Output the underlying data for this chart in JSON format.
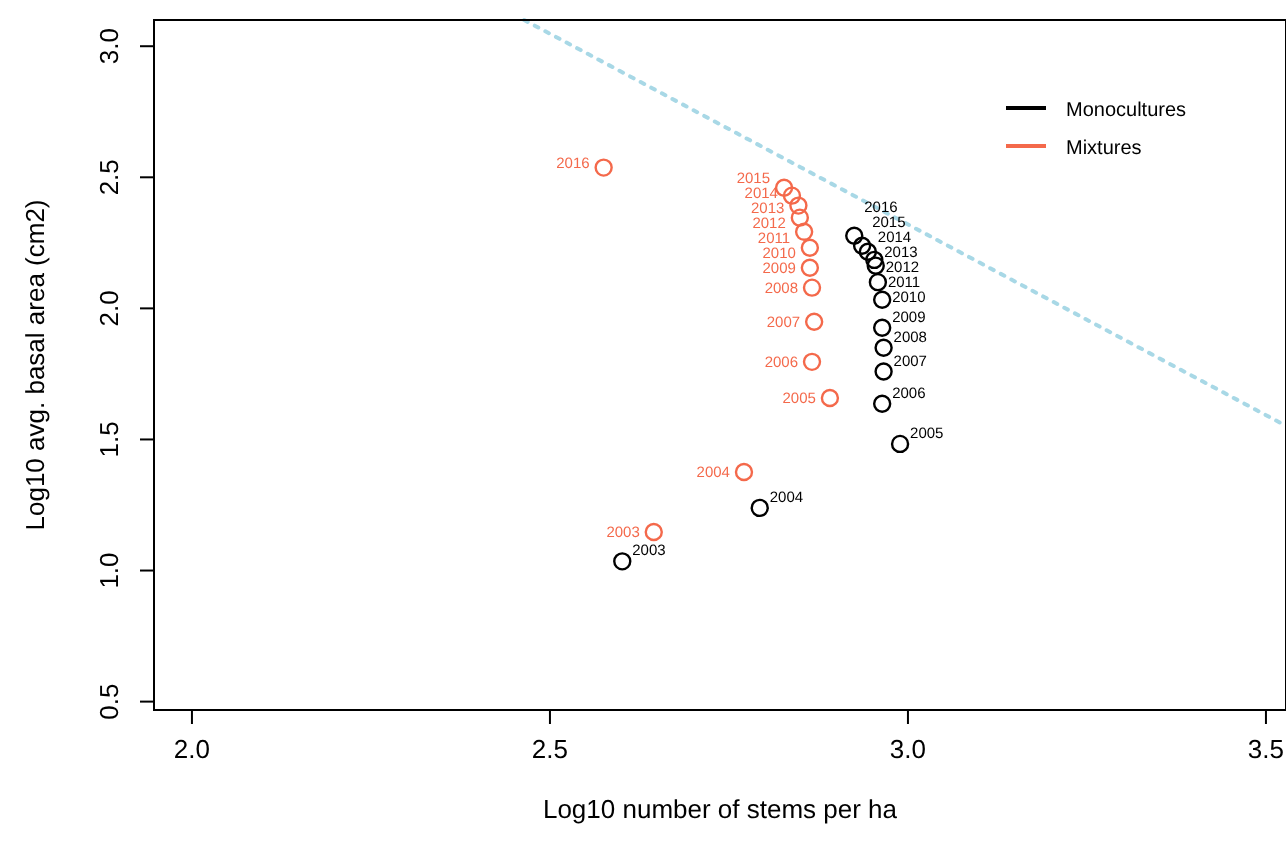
{
  "chart_data": {
    "type": "scatter",
    "xlabel": "Log10 number of stems per ha",
    "ylabel": "Log10 avg. basal area (cm2)",
    "xlim": [
      1.947,
      3.528
    ],
    "ylim": [
      0.468,
      3.1
    ],
    "xticks": [
      {
        "value": 2,
        "label": "2.0"
      },
      {
        "value": 2.5,
        "label": "2.5"
      },
      {
        "value": 3,
        "label": "3.0"
      },
      {
        "value": 3.5,
        "label": "3.5"
      }
    ],
    "yticks": [
      {
        "value": 0.5,
        "label": "0.5"
      },
      {
        "value": 1,
        "label": "1.0"
      },
      {
        "value": 1.5,
        "label": "1.5"
      },
      {
        "value": 2,
        "label": "2.0"
      },
      {
        "value": 2.5,
        "label": "2.5"
      },
      {
        "value": 3,
        "label": "3.0"
      }
    ],
    "marker": "circle",
    "legend": "top right",
    "grid": false,
    "series": [
      {
        "name": "Monocultures",
        "color": "#000000",
        "x": [
          2.601,
          2.793,
          2.989,
          2.964,
          2.966,
          2.966,
          2.964,
          2.964,
          2.958,
          2.955,
          2.953,
          2.944,
          2.936,
          2.925
        ],
        "values": [
          1.035,
          1.239,
          1.483,
          1.636,
          1.759,
          1.85,
          1.926,
          2.033,
          2.1,
          2.163,
          2.185,
          2.216,
          2.239,
          2.277
        ]
      },
      {
        "name": "Mixtures",
        "color": "#f4694b",
        "x": [
          2.645,
          2.771,
          2.891,
          2.866,
          2.869,
          2.866,
          2.863,
          2.863,
          2.855,
          2.849,
          2.847,
          2.838,
          2.827,
          2.575
        ],
        "values": [
          1.147,
          1.376,
          1.658,
          1.796,
          1.949,
          2.079,
          2.155,
          2.231,
          2.292,
          2.346,
          2.392,
          2.43,
          2.46,
          2.537
        ]
      },
      {
        "type": "line",
        "color": "#a8d8e6",
        "line_style": "dotted",
        "marker": "none",
        "x": [
          2.464,
          3.528
        ],
        "values": [
          3.1,
          1.552
        ]
      }
    ],
    "annotations": [
      {
        "text": "2003",
        "x": 2.601,
        "y": 1.035
      },
      {
        "text": "2004",
        "x": 2.793,
        "y": 1.239
      },
      {
        "text": "2005",
        "x": 2.989,
        "y": 1.483
      },
      {
        "text": "2006",
        "x": 2.964,
        "y": 1.636
      },
      {
        "text": "2007",
        "x": 2.966,
        "y": 1.759
      },
      {
        "text": "2008",
        "x": 2.966,
        "y": 1.85
      },
      {
        "text": "2009",
        "x": 2.964,
        "y": 1.926
      },
      {
        "text": "2010",
        "x": 2.964,
        "y": 2.033
      },
      {
        "text": "2011",
        "x": 2.958,
        "y": 2.1
      },
      {
        "text": "2012",
        "x": 2.955,
        "y": 2.163
      },
      {
        "text": "2013",
        "x": 2.953,
        "y": 2.185
      },
      {
        "text": "2014",
        "x": 2.944,
        "y": 2.216
      },
      {
        "text": "2015",
        "x": 2.936,
        "y": 2.239
      },
      {
        "text": "2016",
        "x": 2.925,
        "y": 2.277
      },
      {
        "text": "2003",
        "x": 2.645,
        "y": 1.147
      },
      {
        "text": "2004",
        "x": 2.771,
        "y": 1.376
      },
      {
        "text": "2005",
        "x": 2.891,
        "y": 1.658
      },
      {
        "text": "2006",
        "x": 2.866,
        "y": 1.796
      },
      {
        "text": "2007",
        "x": 2.869,
        "y": 1.949
      },
      {
        "text": "2008",
        "x": 2.866,
        "y": 2.079
      },
      {
        "text": "2009",
        "x": 2.863,
        "y": 2.155
      },
      {
        "text": "2010",
        "x": 2.863,
        "y": 2.231
      },
      {
        "text": "2011",
        "x": 2.855,
        "y": 2.292
      },
      {
        "text": "2012",
        "x": 2.849,
        "y": 2.346
      },
      {
        "text": "2013",
        "x": 2.847,
        "y": 2.392
      },
      {
        "text": "2014",
        "x": 2.838,
        "y": 2.43
      },
      {
        "text": "2015",
        "x": 2.827,
        "y": 2.46
      },
      {
        "text": "2016",
        "x": 2.575,
        "y": 2.537
      }
    ]
  }
}
